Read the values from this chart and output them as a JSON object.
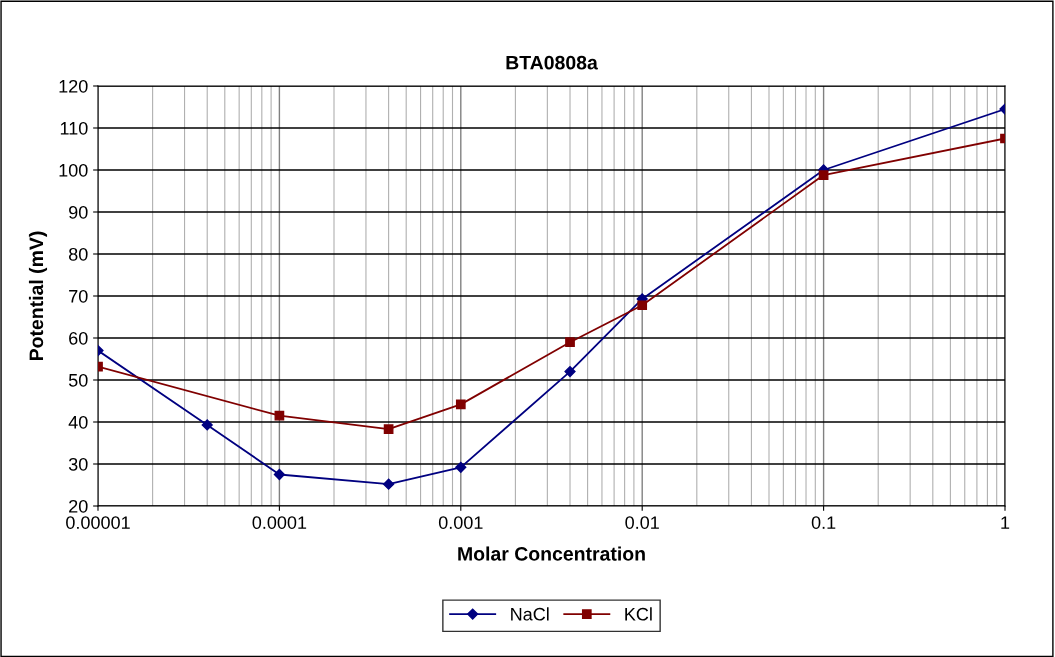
{
  "chart_data": {
    "type": "line",
    "title": "BTA0808a",
    "xlabel": "Molar Concentration",
    "ylabel": "Potential (mV)",
    "log": "x",
    "grid": true,
    "legend": "bottom",
    "xlim": [
      1e-05,
      1
    ],
    "xticks": [
      {
        "value": 1e-05,
        "label": "0.00001"
      },
      {
        "value": 0.0001,
        "label": "0.0001"
      },
      {
        "value": 0.001,
        "label": "0.001"
      },
      {
        "value": 0.01,
        "label": "0.01"
      },
      {
        "value": 0.1,
        "label": "0.1"
      },
      {
        "value": 1,
        "label": "1"
      }
    ],
    "ylim": [
      20,
      120
    ],
    "yticks": [
      20,
      30,
      40,
      50,
      60,
      70,
      80,
      90,
      100,
      110,
      120
    ],
    "series": [
      {
        "name": "NaCl",
        "color": "#000080",
        "marker": "diamond",
        "x": [
          1e-05,
          4e-05,
          0.0001,
          0.0004,
          0.001,
          0.004,
          0.01,
          0.1,
          1
        ],
        "values": [
          57,
          39.3,
          27.5,
          25.2,
          29.2,
          52,
          69.3,
          100,
          114.5
        ]
      },
      {
        "name": "KCl",
        "color": "#800000",
        "marker": "square",
        "x": [
          1e-05,
          0.0001,
          0.0004,
          0.001,
          0.004,
          0.01,
          0.1,
          1
        ],
        "values": [
          53.2,
          41.5,
          38.3,
          44.2,
          59,
          67.8,
          98.8,
          107.5
        ]
      }
    ]
  }
}
